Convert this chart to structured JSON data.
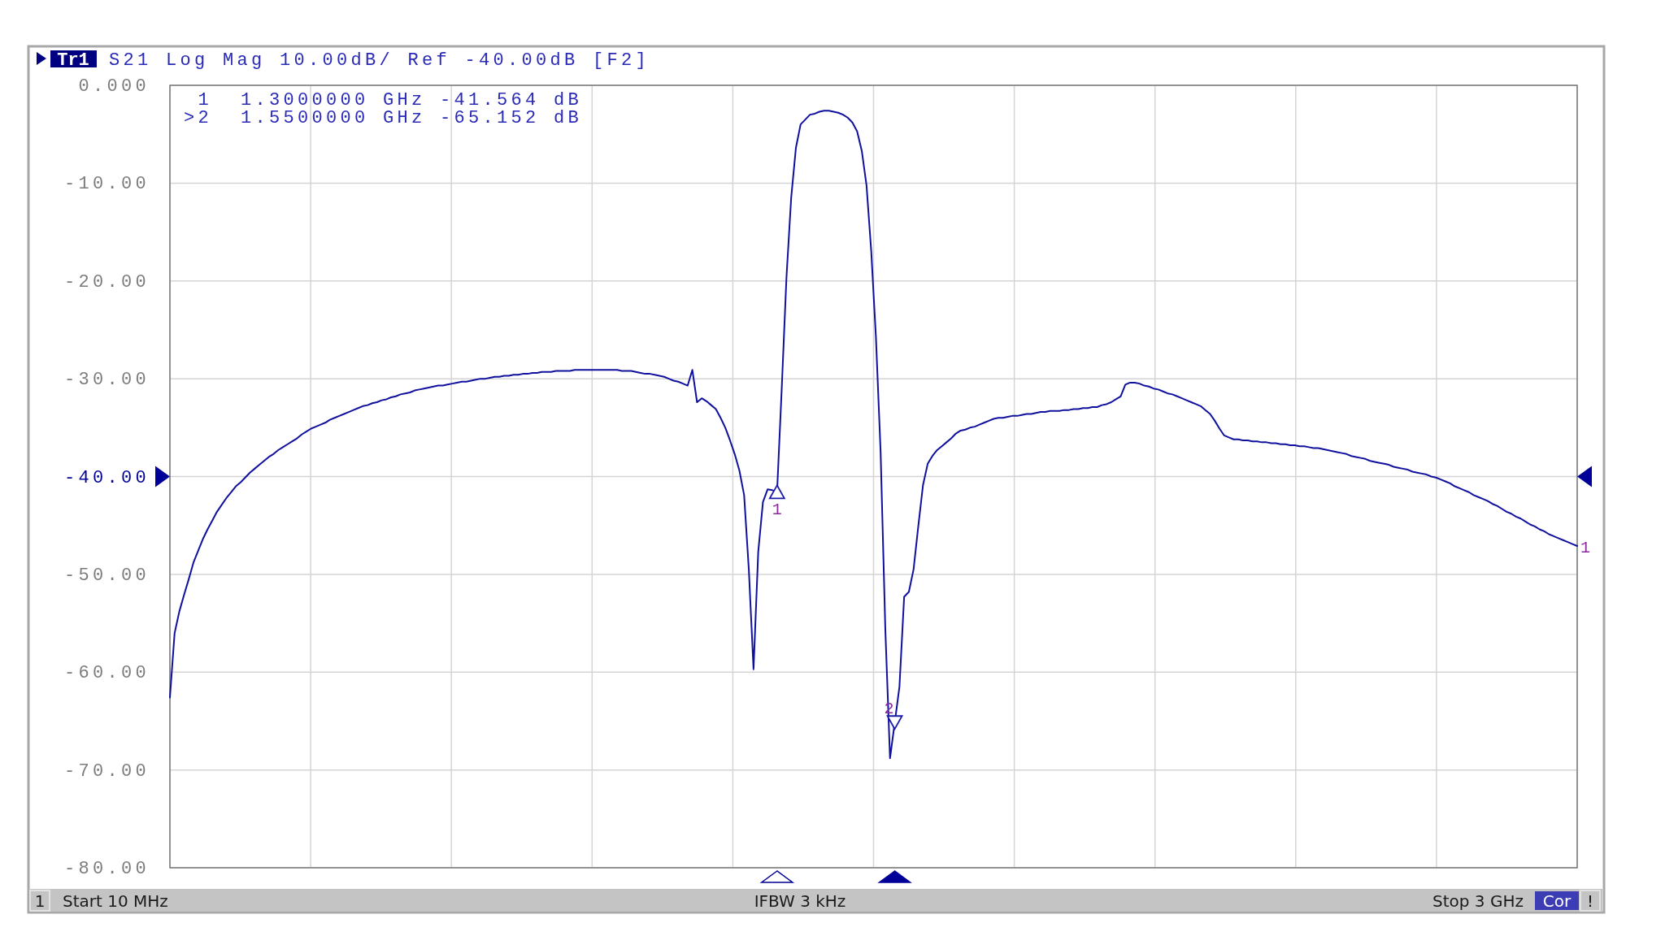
{
  "chart_data": {
    "type": "line",
    "title": "Tr1",
    "subtitle": "S21 Log Mag 10.00dB/ Ref -40.00dB [F2]",
    "categories": [
      null,
      null,
      null,
      null,
      null,
      null,
      null,
      null,
      null,
      null,
      null,
      null,
      null,
      null,
      null,
      null,
      null,
      null,
      null,
      null,
      null,
      null,
      null,
      null,
      null,
      null,
      null,
      null,
      null,
      null,
      null,
      null,
      null,
      null,
      null,
      null,
      null,
      null,
      null,
      null,
      null,
      null,
      null,
      null,
      null,
      null,
      null,
      null,
      null,
      null,
      null,
      null,
      null,
      null,
      null,
      null,
      null,
      null,
      null,
      null,
      null,
      null,
      null,
      null,
      null,
      null,
      null,
      null,
      null,
      null,
      null,
      null,
      null,
      null,
      null,
      null,
      null,
      null,
      null,
      null,
      null,
      null,
      null,
      null,
      null,
      null,
      null,
      null,
      null,
      null,
      null,
      null,
      null,
      null,
      null,
      null,
      null,
      null,
      null,
      null,
      null,
      null,
      null,
      null,
      null,
      null,
      null,
      null,
      null,
      null,
      null,
      null,
      null,
      null,
      null,
      null,
      null,
      null,
      null,
      null,
      null,
      null,
      null,
      null,
      null,
      null,
      null,
      null,
      null,
      null,
      null,
      null,
      null,
      null,
      null,
      null,
      null,
      null,
      null,
      null,
      null,
      null,
      null,
      null,
      null,
      null,
      null,
      null,
      null,
      null,
      null,
      null,
      null,
      null,
      null,
      null,
      null,
      null,
      null,
      null,
      null,
      null,
      null,
      null,
      null,
      null,
      null,
      null,
      null,
      null,
      null,
      null,
      null,
      null,
      null,
      null,
      null,
      null,
      null,
      null,
      null,
      null,
      null,
      null,
      null,
      null,
      null,
      null,
      null,
      null,
      null,
      null,
      null,
      null,
      null,
      null,
      null,
      null,
      null,
      null,
      null,
      null,
      null,
      null,
      null,
      null,
      null,
      null,
      null,
      null,
      null,
      null,
      null,
      null,
      null,
      null,
      null,
      null,
      null,
      null,
      null,
      null,
      null,
      null,
      null,
      null,
      null,
      null,
      null,
      null,
      null,
      null,
      null,
      null,
      null,
      null,
      null,
      null,
      null,
      null,
      null,
      null,
      null,
      null,
      null,
      null,
      null,
      null,
      null,
      null,
      null,
      null,
      null,
      null,
      null,
      null,
      null,
      null,
      null,
      null,
      null,
      null,
      null,
      null,
      null,
      null,
      null,
      null,
      null,
      null,
      null,
      null,
      null,
      null,
      null,
      null,
      null,
      null,
      null,
      null,
      null,
      null,
      null,
      null,
      null,
      null,
      null,
      null,
      null,
      null,
      null,
      null,
      null,
      null,
      null,
      null,
      null,
      null,
      null,
      null
    ],
    "series": [
      {
        "color": "#10109e",
        "values": [
          -62.6,
          -56.0,
          -53.8,
          -52.1,
          -50.5,
          -48.8,
          -47.6,
          -46.4,
          -45.4,
          -44.5,
          -43.6,
          -42.9,
          -42.2,
          -41.6,
          -41.0,
          -40.6,
          -40.1,
          -39.6,
          -39.2,
          -38.8,
          -38.4,
          -38.0,
          -37.7,
          -37.3,
          -37.0,
          -36.7,
          -36.4,
          -36.1,
          -35.7,
          -35.4,
          -35.1,
          -34.9,
          -34.7,
          -34.5,
          -34.2,
          -34.0,
          -33.8,
          -33.6,
          -33.4,
          -33.2,
          -33.0,
          -32.8,
          -32.7,
          -32.5,
          -32.4,
          -32.2,
          -32.1,
          -31.9,
          -31.8,
          -31.6,
          -31.5,
          -31.4,
          -31.2,
          -31.1,
          -31.0,
          -30.9,
          -30.8,
          -30.7,
          -30.7,
          -30.6,
          -30.5,
          -30.4,
          -30.3,
          -30.3,
          -30.2,
          -30.1,
          -30.0,
          -30.0,
          -29.9,
          -29.8,
          -29.8,
          -29.7,
          -29.7,
          -29.6,
          -29.6,
          -29.5,
          -29.5,
          -29.4,
          -29.4,
          -29.3,
          -29.3,
          -29.3,
          -29.2,
          -29.2,
          -29.2,
          -29.2,
          -29.1,
          -29.1,
          -29.1,
          -29.1,
          -29.1,
          -29.1,
          -29.1,
          -29.1,
          -29.1,
          -29.1,
          -29.2,
          -29.2,
          -29.2,
          -29.3,
          -29.4,
          -29.5,
          -29.5,
          -29.6,
          -29.7,
          -29.8,
          -30.0,
          -30.2,
          -30.3,
          -30.5,
          -30.7,
          -29.1,
          -32.4,
          -32.0,
          -32.3,
          -32.7,
          -33.1,
          -34.0,
          -35.0,
          -36.3,
          -37.7,
          -39.4,
          -41.9,
          -49.5,
          -59.7,
          -47.7,
          -42.6,
          -41.3,
          -41.4,
          -41.564,
          -30.9,
          -19.6,
          -11.5,
          -6.4,
          -4.0,
          -3.5,
          -3.0,
          -2.9,
          -2.7,
          -2.6,
          -2.6,
          -2.7,
          -2.8,
          -3.0,
          -3.3,
          -3.8,
          -4.7,
          -6.7,
          -10.2,
          -16.9,
          -25.7,
          -37.5,
          -55.6,
          -68.8,
          -65.152,
          -61.5,
          -52.3,
          -51.8,
          -49.5,
          -45.1,
          -40.9,
          -38.7,
          -37.9,
          -37.3,
          -36.9,
          -36.5,
          -36.1,
          -35.6,
          -35.3,
          -35.2,
          -35.0,
          -34.9,
          -34.7,
          -34.5,
          -34.3,
          -34.1,
          -34.0,
          -34.0,
          -33.9,
          -33.8,
          -33.8,
          -33.7,
          -33.6,
          -33.6,
          -33.5,
          -33.4,
          -33.4,
          -33.3,
          -33.3,
          -33.3,
          -33.2,
          -33.2,
          -33.1,
          -33.1,
          -33.0,
          -33.0,
          -32.9,
          -32.9,
          -32.7,
          -32.6,
          -32.4,
          -32.1,
          -31.8,
          -30.6,
          -30.4,
          -30.4,
          -30.5,
          -30.7,
          -30.8,
          -31.0,
          -31.1,
          -31.3,
          -31.5,
          -31.6,
          -31.8,
          -32.0,
          -32.2,
          -32.4,
          -32.6,
          -32.8,
          -33.2,
          -33.6,
          -34.3,
          -35.1,
          -35.8,
          -36.0,
          -36.2,
          -36.2,
          -36.3,
          -36.3,
          -36.4,
          -36.4,
          -36.5,
          -36.5,
          -36.6,
          -36.6,
          -36.7,
          -36.7,
          -36.8,
          -36.8,
          -36.9,
          -36.9,
          -37.0,
          -37.1,
          -37.1,
          -37.2,
          -37.3,
          -37.4,
          -37.5,
          -37.6,
          -37.7,
          -37.9,
          -38.0,
          -38.1,
          -38.2,
          -38.4,
          -38.5,
          -38.6,
          -38.7,
          -38.8,
          -39.0,
          -39.1,
          -39.2,
          -39.3,
          -39.5,
          -39.6,
          -39.7,
          -39.8,
          -40.0,
          -40.1,
          -40.3,
          -40.5,
          -40.7,
          -41.0,
          -41.2,
          -41.4,
          -41.6,
          -41.9,
          -42.1,
          -42.3,
          -42.5,
          -42.8,
          -43.0,
          -43.3,
          -43.6,
          -43.8,
          -44.1,
          -44.3,
          -44.6,
          -44.9,
          -45.1,
          -45.4,
          -45.6,
          -45.9,
          -46.1,
          -46.3,
          -46.5,
          -46.7,
          -46.9,
          -47.1
        ]
      },
      {
        "type": "scatter",
        "marker": "triangle",
        "color": "#1a1aa8",
        "values": [
          null,
          null,
          null,
          null,
          null,
          null,
          null,
          null,
          null,
          null,
          null,
          null,
          null,
          null,
          null,
          null,
          null,
          null,
          null,
          null,
          null,
          null,
          null,
          null,
          null,
          null,
          null,
          null,
          null,
          null,
          null,
          null,
          null,
          null,
          null,
          null,
          null,
          null,
          null,
          null,
          null,
          null,
          null,
          null,
          null,
          null,
          null,
          null,
          null,
          null,
          null,
          null,
          null,
          null,
          null,
          null,
          null,
          null,
          null,
          null,
          null,
          null,
          null,
          null,
          null,
          null,
          null,
          null,
          null,
          null,
          null,
          null,
          null,
          null,
          null,
          null,
          null,
          null,
          null,
          null,
          null,
          null,
          null,
          null,
          null,
          null,
          null,
          null,
          null,
          null,
          null,
          null,
          null,
          null,
          null,
          null,
          null,
          null,
          null,
          null,
          null,
          null,
          null,
          null,
          null,
          null,
          null,
          null,
          null,
          null,
          null,
          null,
          null,
          null,
          null,
          null,
          null,
          null,
          null,
          null,
          null,
          null,
          null,
          null,
          null,
          null,
          null,
          null,
          null,
          -41.564,
          null,
          null,
          null,
          null,
          null,
          null,
          null,
          null,
          null,
          null,
          null,
          null,
          null,
          null,
          null,
          null,
          null,
          null,
          null,
          null,
          null,
          null,
          null,
          null,
          -65.152,
          null,
          null,
          null,
          null,
          null,
          null,
          null,
          null,
          null,
          null,
          null,
          null,
          null,
          null,
          null,
          null,
          null,
          null,
          null,
          null,
          null,
          null,
          null,
          null,
          null,
          null,
          null,
          null,
          null,
          null,
          null,
          null,
          null,
          null,
          null,
          null,
          null,
          null,
          null,
          null,
          null,
          null,
          null,
          null,
          null,
          null,
          null,
          null,
          null,
          null,
          null,
          null,
          null,
          null,
          null,
          null,
          null,
          null,
          null,
          null,
          null,
          null,
          null,
          null,
          null,
          null,
          null,
          null,
          null,
          null,
          null,
          null,
          null,
          null,
          null,
          null,
          null,
          null,
          null,
          null,
          null,
          null,
          null,
          null,
          null,
          null,
          null,
          null,
          null,
          null,
          null,
          null,
          null,
          null,
          null,
          null,
          null,
          null,
          null,
          null,
          null,
          null,
          null,
          null,
          null,
          null,
          null,
          null,
          null,
          null,
          null,
          null,
          null,
          null,
          null,
          null,
          null,
          null,
          null,
          null,
          null,
          null,
          null,
          null,
          null,
          null,
          null,
          null,
          null,
          null,
          null,
          null,
          null,
          null,
          null,
          null,
          null,
          null,
          null,
          null,
          null,
          null,
          null,
          null,
          null
        ]
      }
    ],
    "ylim": [
      -80,
      0
    ],
    "yticks": [
      {
        "value": 0,
        "label": "0.000"
      },
      {
        "value": -10,
        "label": "-10.00"
      },
      {
        "value": -20,
        "label": "-20.00"
      },
      {
        "value": -30,
        "label": "-30.00"
      },
      {
        "value": -40,
        "label": "-40.00"
      },
      {
        "value": -50,
        "label": "-50.00"
      },
      {
        "value": -60,
        "label": "-60.00"
      },
      {
        "value": -70,
        "label": "-70.00"
      },
      {
        "value": -80,
        "label": "-80.00"
      }
    ],
    "tick_labels": "y",
    "grid": true,
    "annotations": [
      {
        "text": "1",
        "y": -41.564
      },
      "2",
      "1  1.3000000 GHz -41.564 dB",
      ">2  1.5500000 GHz -65.152 dB",
      "1",
      "1",
      "Start 10 MHz",
      "IFBW 3 kHz",
      "Stop 3 GHz",
      "Cor",
      "!"
    ]
  }
}
